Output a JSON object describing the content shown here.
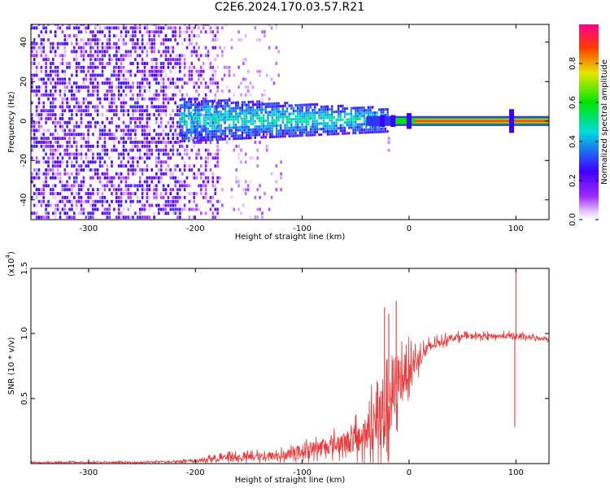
{
  "title": "C2E6.2024.170.03.57.R21",
  "chart_data": [
    {
      "type": "heatmap",
      "xlabel": "Height of straight line (km)",
      "ylabel": "Frequency (Hz)",
      "xlim": [
        -354,
        131
      ],
      "ylim": [
        -50,
        49
      ],
      "x_ticks": [
        -300,
        -200,
        -100,
        0,
        100
      ],
      "y_ticks": [
        -40,
        -20,
        0,
        20,
        40
      ],
      "colorbar": {
        "label": "Normalized spectral amplitude",
        "range": [
          0,
          1
        ],
        "ticks": [
          "0.0",
          "0.2",
          "0.4",
          "0.6",
          "0.8"
        ],
        "tick_values": [
          0.0,
          0.2,
          0.4,
          0.6,
          0.8
        ]
      },
      "regions": [
        {
          "x": [
            -354,
            -215
          ],
          "freq": [
            -50,
            49
          ],
          "amplitude": [
            0.05,
            0.25
          ]
        },
        {
          "x": [
            -215,
            -180
          ],
          "freq": [
            -50,
            49
          ],
          "amplitude": [
            0.02,
            0.15
          ]
        },
        {
          "x": [
            -180,
            -120
          ],
          "freq": [
            -50,
            49
          ],
          "amplitude": [
            0.0,
            0.08
          ]
        },
        {
          "x": [
            -215,
            -20
          ],
          "freq": [
            -12,
            12
          ],
          "amplitude": [
            0.2,
            0.5
          ]
        },
        {
          "x": [
            0,
            131
          ],
          "freq": [
            -1,
            1
          ],
          "amplitude": [
            0.95,
            1.0
          ]
        }
      ],
      "colors": {
        "low": "#6a00ff",
        "mid": "#00e0c0",
        "high": "#ff1a1a"
      }
    },
    {
      "type": "line",
      "xlabel": "Height of straight line (km)",
      "ylabel": "SNR (10 * v/v)",
      "multiplier": "(x10",
      "multiplier_exp": "4",
      "multiplier_close": ")",
      "xlim": [
        -354,
        131
      ],
      "ylim": [
        0,
        1.5
      ],
      "x_ticks": [
        -300,
        -200,
        -100,
        0,
        100
      ],
      "y_ticks": [
        "0.5",
        "1.0",
        "1.5"
      ],
      "y_tick_values": [
        0.5,
        1.0,
        1.5
      ],
      "series_color": "#e83a3a",
      "envelope": {
        "x": [
          -354,
          -250,
          -200,
          -180,
          -150,
          -120,
          -100,
          -80,
          -60,
          -40,
          -30,
          -20,
          -10,
          0,
          10,
          20,
          40,
          60,
          90,
          100,
          110,
          131
        ],
        "mean": [
          0.01,
          0.01,
          0.02,
          0.04,
          0.05,
          0.06,
          0.1,
          0.13,
          0.16,
          0.22,
          0.3,
          0.45,
          0.65,
          0.72,
          0.82,
          0.9,
          0.97,
          0.98,
          0.98,
          0.98,
          0.97,
          0.96
        ],
        "amp": [
          0.01,
          0.01,
          0.02,
          0.05,
          0.06,
          0.07,
          0.1,
          0.12,
          0.16,
          0.3,
          0.5,
          0.8,
          0.4,
          0.25,
          0.15,
          0.08,
          0.05,
          0.04,
          0.04,
          0.05,
          0.04,
          0.03
        ]
      },
      "spikes": [
        {
          "x": -23,
          "y": 1.2
        },
        {
          "x": -19,
          "y": 1.15
        },
        {
          "x": -12,
          "y": 1.25
        },
        {
          "x": 100,
          "y": 1.5
        },
        {
          "x": 99,
          "y": 0.28
        }
      ]
    }
  ]
}
